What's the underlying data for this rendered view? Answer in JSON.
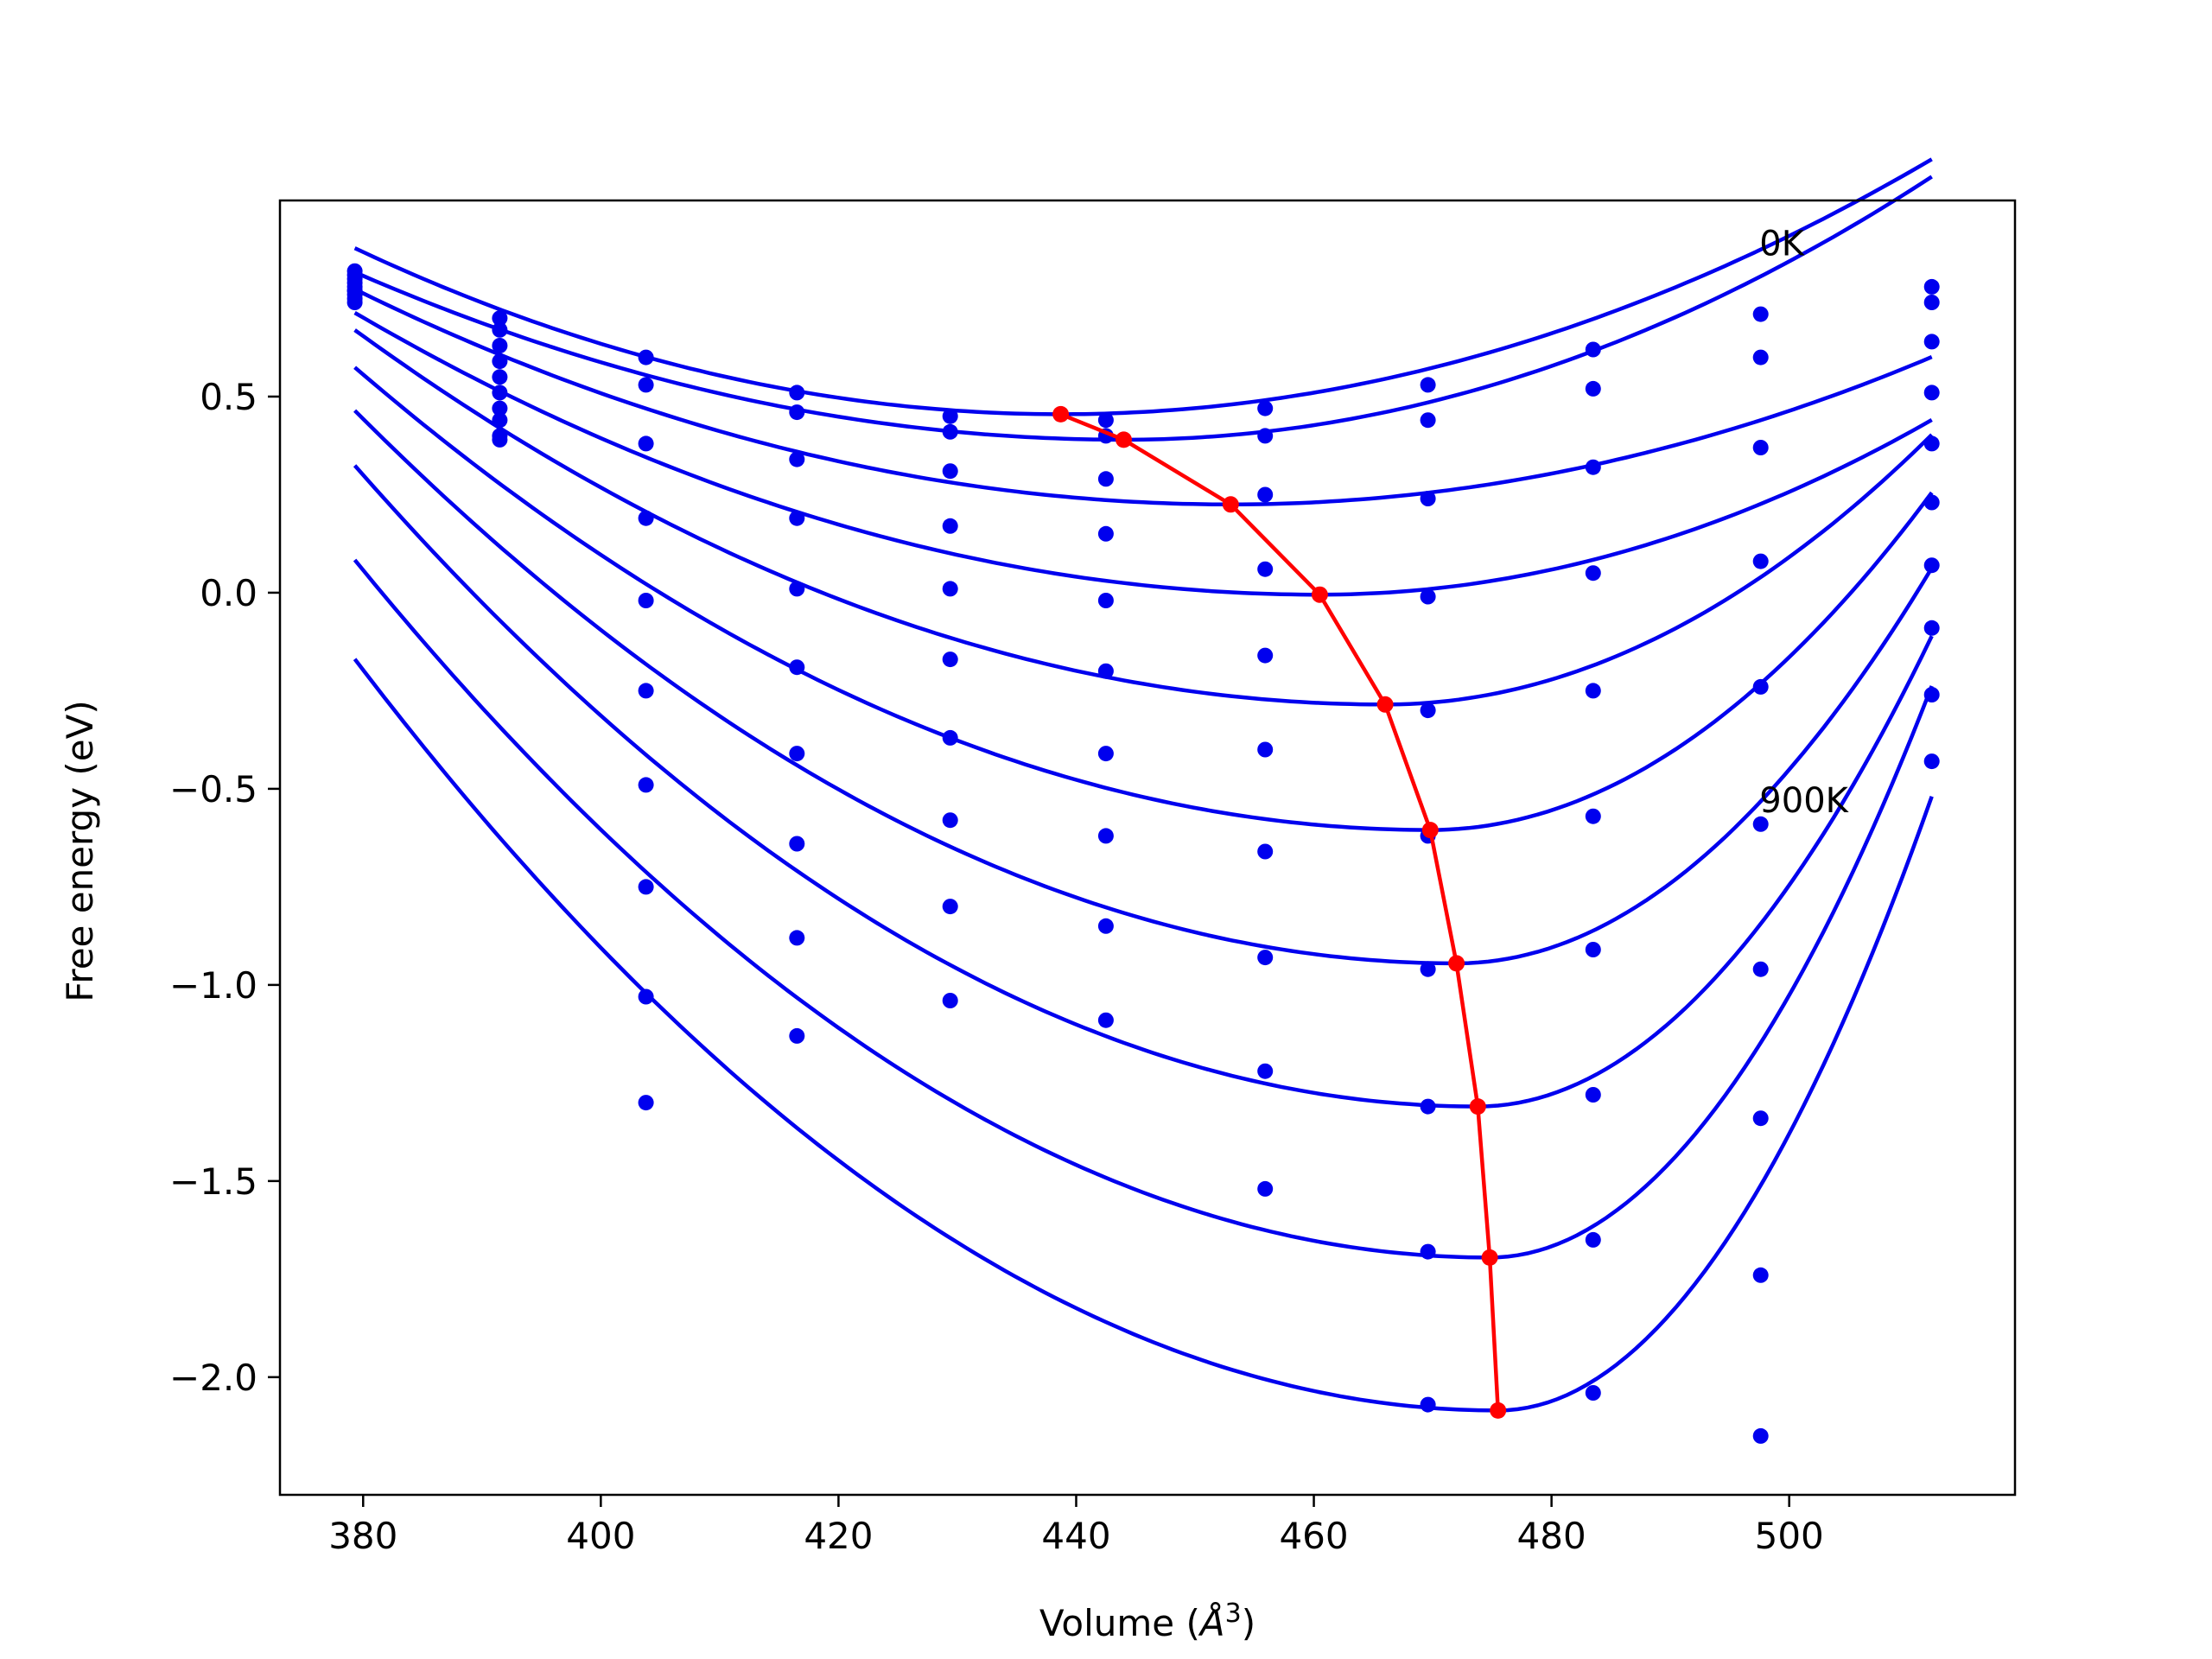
{
  "chart_data": {
    "type": "scatter",
    "title": "",
    "xlabel": "Volume (",
    "xlabel_symbol": "Å",
    "xlabel_exponent": "3",
    "xlabel_tail": ")",
    "ylabel": "Free energy (eV)",
    "xlim": [
      373,
      519
    ],
    "ylim": [
      -2.3,
      1.0
    ],
    "xticks": [
      380,
      400,
      420,
      440,
      460,
      480,
      500
    ],
    "yticks": [
      -2.0,
      -1.5,
      -1.0,
      -0.5,
      0.0,
      0.5
    ],
    "ytick_labels": [
      "−2.0",
      "−1.5",
      "−1.0",
      "−0.5",
      "0.0",
      "0.5"
    ],
    "annotations": [
      {
        "text": "0K",
        "x": 497.5,
        "y": 0.86
      },
      {
        "text": "900K",
        "x": 497.5,
        "y": -0.56
      }
    ],
    "colors": {
      "series": "#0000ee",
      "minima": "#ff0000"
    },
    "grid": false,
    "volumes": [
      379.3,
      391.5,
      403.8,
      416.5,
      429.4,
      442.5,
      455.9,
      469.6,
      483.5,
      497.6,
      512.0
    ],
    "curve_range": [
      379.3,
      512.0
    ],
    "series": [
      {
        "points": [
          0.82,
          0.7,
          0.6,
          0.51,
          0.45,
          0.44,
          0.47,
          0.53,
          0.62,
          0.71,
          0.78
        ],
        "fit": {
          "vmin": 438.7,
          "emin": 0.455,
          "curvature_left": 0.00012,
          "curvature_right": 0.000121
        }
      },
      {
        "points": [
          0.81,
          0.67,
          0.53,
          0.46,
          0.41,
          0.4,
          0.4,
          0.44,
          0.52,
          0.6,
          0.74
        ],
        "fit": {
          "vmin": 444.0,
          "emin": 0.39,
          "curvature_left": 0.000102,
          "curvature_right": 0.000145
        }
      },
      {
        "points": [
          0.8,
          0.63,
          0.38,
          0.34,
          0.31,
          0.29,
          0.25,
          0.24,
          0.32,
          0.37,
          0.64
        ],
        "fit": {
          "vmin": 453.0,
          "emin": 0.225,
          "curvature_left": 0.000101,
          "curvature_right": 0.000108
        }
      },
      {
        "points": [
          0.79,
          0.59,
          0.19,
          0.19,
          0.17,
          0.15,
          0.06,
          -0.01,
          0.05,
          0.08,
          0.51
        ],
        "fit": {
          "vmin": 460.5,
          "emin": -0.005,
          "curvature_left": 0.000109,
          "curvature_right": 0.000168
        }
      },
      {
        "points": [
          0.78,
          0.55,
          -0.02,
          0.01,
          0.01,
          -0.02,
          -0.16,
          -0.3,
          -0.25,
          -0.24,
          0.38
        ],
        "fit": {
          "vmin": 466.0,
          "emin": -0.285,
          "curvature_left": 0.000127,
          "curvature_right": 0.000325
        }
      },
      {
        "points": [
          0.77,
          0.51,
          -0.25,
          -0.19,
          -0.17,
          -0.2,
          -0.4,
          -0.62,
          -0.57,
          -0.59,
          0.23
        ],
        "fit": {
          "vmin": 469.8,
          "emin": -0.605,
          "curvature_left": 0.000144,
          "curvature_right": 0.000483
        }
      },
      {
        "points": [
          0.77,
          0.47,
          -0.49,
          -0.41,
          -0.37,
          -0.41,
          -0.66,
          -0.96,
          -0.91,
          -0.96,
          0.07
        ],
        "fit": {
          "vmin": 472.0,
          "emin": -0.945,
          "curvature_left": 0.000164,
          "curvature_right": 0.00063
        }
      },
      {
        "points": [
          0.76,
          0.44,
          -0.75,
          -0.64,
          -0.58,
          -0.62,
          -0.93,
          -1.31,
          -1.28,
          -1.34,
          -0.09
        ],
        "fit": {
          "vmin": 473.8,
          "emin": -1.31,
          "curvature_left": 0.000183,
          "curvature_right": 0.000822
        }
      },
      {
        "points": [
          0.75,
          0.4,
          -1.03,
          -0.88,
          -0.8,
          -0.85,
          -1.22,
          -1.68,
          -1.65,
          -1.74,
          -0.26
        ],
        "fit": {
          "vmin": 474.8,
          "emin": -1.695,
          "curvature_left": 0.000195,
          "curvature_right": 0.001053
        }
      },
      {
        "points": [
          0.74,
          0.39,
          -1.3,
          -1.13,
          -1.04,
          -1.09,
          -1.52,
          -2.07,
          -2.04,
          -2.15,
          -0.43
        ],
        "fit": {
          "vmin": 475.5,
          "emin": -2.085,
          "curvature_left": 0.000207,
          "curvature_right": 0.001175
        }
      }
    ],
    "minima": {
      "x": [
        438.7,
        444.0,
        453.0,
        460.5,
        466.0,
        469.8,
        472.0,
        473.8,
        474.8,
        475.5
      ],
      "y": [
        0.455,
        0.39,
        0.225,
        -0.005,
        -0.285,
        -0.605,
        -0.945,
        -1.31,
        -1.695,
        -2.085
      ]
    }
  }
}
